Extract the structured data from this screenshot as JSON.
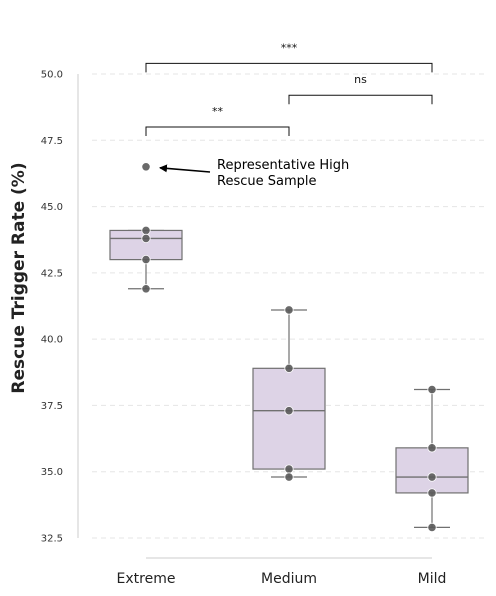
{
  "chart_data": {
    "type": "box",
    "ylabel": "Rescue Trigger Rate (%)",
    "xlabel": "",
    "ylim": [
      32.3,
      51.3
    ],
    "yticks": [
      "32.5",
      "35.0",
      "37.5",
      "40.0",
      "42.5",
      "45.0",
      "47.5",
      "50.0"
    ],
    "grid": "y-dashed",
    "categories": [
      "Extreme",
      "Medium",
      "Mild"
    ],
    "boxes": [
      {
        "category": "Extreme",
        "whisker_low": 41.9,
        "q1": 43.0,
        "median": 43.8,
        "q3": 44.1,
        "whisker_high": 44.1,
        "points": [
          46.5,
          44.1,
          43.8,
          43.0,
          41.9
        ]
      },
      {
        "category": "Medium",
        "whisker_low": 34.8,
        "q1": 35.1,
        "median": 37.3,
        "q3": 38.9,
        "whisker_high": 41.1,
        "points": [
          41.1,
          38.9,
          37.3,
          35.1,
          34.8
        ]
      },
      {
        "category": "Mild",
        "whisker_low": 32.9,
        "q1": 34.2,
        "median": 34.8,
        "q3": 35.9,
        "whisker_high": 38.1,
        "points": [
          38.1,
          35.9,
          34.8,
          34.2,
          32.9
        ]
      }
    ],
    "significance": [
      {
        "from": "Extreme",
        "to": "Mild",
        "y": 50.4,
        "label": "***"
      },
      {
        "from": "Medium",
        "to": "Mild",
        "y": 49.2,
        "label": "ns"
      },
      {
        "from": "Extreme",
        "to": "Medium",
        "y": 48.0,
        "label": "**"
      }
    ],
    "annotation": {
      "lines": [
        "Representative High",
        "Rescue Sample"
      ],
      "target_category": "Extreme",
      "target_value": 46.5
    },
    "colors": {
      "box_fill": "#ddd3e6",
      "box_edge": "#707070",
      "point": "#5a5a5a",
      "grid": "#e5e5e5"
    }
  }
}
